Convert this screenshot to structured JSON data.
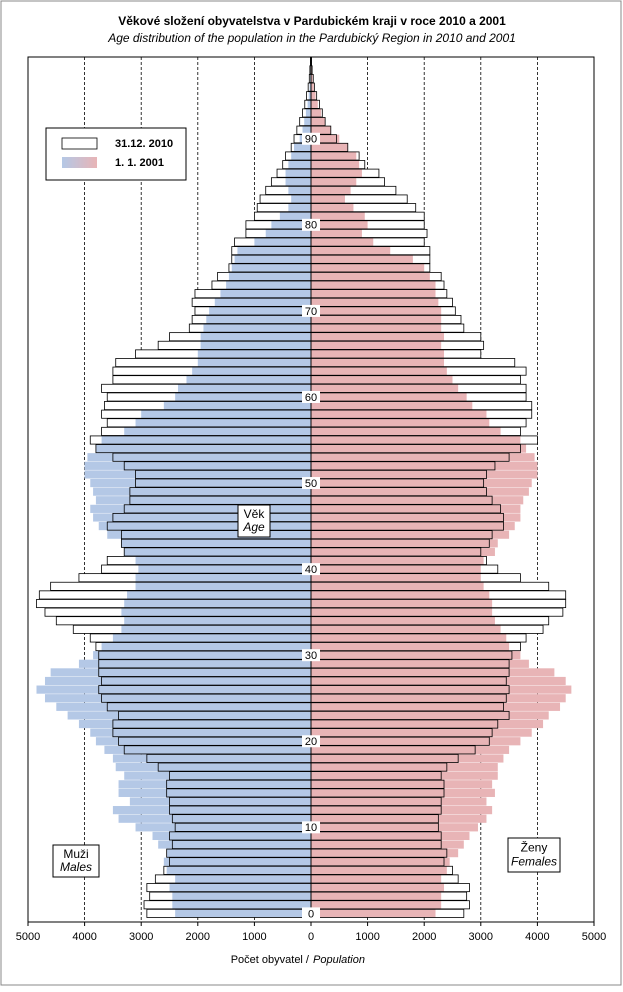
{
  "chart_data": {
    "type": "pyramid",
    "title": "Věkové složení obyvatelstva  v Pardubickém kraji v roce 2010 a 2001",
    "subtitle": "Age distribution of the population  in the Pardubický Region in 2010 and 2001",
    "x_label": "Počet obyvatel /",
    "x_label_en": "Population",
    "y_label": "Věk",
    "y_label_en": "Age",
    "left_label": "Muži",
    "left_label_en": "Males",
    "right_label": "Ženy",
    "right_label_en": "Females",
    "xlim": [
      -5000,
      5000
    ],
    "xticks": [
      {
        "value": -5000,
        "label": "5000"
      },
      {
        "value": -4000,
        "label": "4000"
      },
      {
        "value": -3000,
        "label": "3000"
      },
      {
        "value": -2000,
        "label": "2000"
      },
      {
        "value": -1000,
        "label": "1000"
      },
      0,
      1000,
      2000,
      3000,
      4000,
      5000
    ],
    "ylim": [
      -1,
      99.5
    ],
    "yticks": [
      0,
      10,
      20,
      30,
      40,
      50,
      60,
      70,
      80,
      90
    ],
    "grid": true,
    "legend": "top-left",
    "ages": [
      0,
      1,
      2,
      3,
      4,
      5,
      6,
      7,
      8,
      9,
      10,
      11,
      12,
      13,
      14,
      15,
      16,
      17,
      18,
      19,
      20,
      21,
      22,
      23,
      24,
      25,
      26,
      27,
      28,
      29,
      30,
      31,
      32,
      33,
      34,
      35,
      36,
      37,
      38,
      39,
      40,
      41,
      42,
      43,
      44,
      45,
      46,
      47,
      48,
      49,
      50,
      51,
      52,
      53,
      54,
      55,
      56,
      57,
      58,
      59,
      60,
      61,
      62,
      63,
      64,
      65,
      66,
      67,
      68,
      69,
      70,
      71,
      72,
      73,
      74,
      75,
      76,
      77,
      78,
      79,
      80,
      81,
      82,
      83,
      84,
      85,
      86,
      87,
      88,
      89,
      90,
      91,
      92,
      93,
      94,
      95,
      96,
      97,
      98,
      99
    ],
    "series": [
      {
        "name": "31.12. 2010",
        "color": "#ffffff",
        "stroke": "#000000",
        "males": [
          2900,
          2950,
          2850,
          2900,
          2750,
          2600,
          2500,
          2550,
          2450,
          2500,
          2400,
          2450,
          2500,
          2500,
          2550,
          2550,
          2500,
          2700,
          2900,
          3300,
          3400,
          3500,
          3500,
          3400,
          3600,
          3700,
          3750,
          3700,
          3750,
          3750,
          3750,
          3800,
          3900,
          4200,
          4500,
          4700,
          4850,
          4800,
          4600,
          4100,
          3700,
          3600,
          3300,
          3350,
          3350,
          3600,
          3500,
          3300,
          3200,
          3200,
          3100,
          3100,
          3300,
          3500,
          3800,
          3900,
          3700,
          3600,
          3700,
          3650,
          3600,
          3700,
          3500,
          3500,
          3450,
          3100,
          2700,
          2500,
          2150,
          2100,
          2050,
          2100,
          2050,
          1750,
          1650,
          1450,
          1400,
          1400,
          1350,
          1150,
          1150,
          1000,
          950,
          900,
          800,
          700,
          600,
          500,
          450,
          350,
          300,
          250,
          200,
          150,
          110,
          80,
          50,
          30,
          20,
          10
        ],
        "females": [
          2700,
          2800,
          2750,
          2800,
          2600,
          2500,
          2350,
          2400,
          2300,
          2300,
          2250,
          2250,
          2300,
          2300,
          2350,
          2350,
          2300,
          2400,
          2600,
          2900,
          3150,
          3200,
          3300,
          3500,
          3400,
          3450,
          3500,
          3450,
          3500,
          3500,
          3550,
          3700,
          3800,
          4100,
          4200,
          4450,
          4500,
          4500,
          4200,
          3700,
          3300,
          3100,
          3000,
          3150,
          3200,
          3400,
          3400,
          3350,
          3200,
          3100,
          3050,
          3100,
          3250,
          3500,
          3700,
          4000,
          3700,
          3800,
          3900,
          3900,
          3800,
          3800,
          3700,
          3800,
          3600,
          3000,
          3050,
          3000,
          2700,
          2650,
          2550,
          2500,
          2400,
          2350,
          2300,
          2100,
          2100,
          2100,
          2000,
          2050,
          2000,
          2000,
          1850,
          1700,
          1500,
          1300,
          1200,
          950,
          850,
          650,
          450,
          350,
          250,
          200,
          150,
          100,
          60,
          40,
          20,
          10
        ]
      },
      {
        "name": "1. 1. 2001",
        "color": "#b4c8e6",
        "color_females": "#e8b4b6",
        "males": [
          2400,
          2450,
          2450,
          2500,
          2400,
          2550,
          2600,
          2550,
          2700,
          2800,
          3100,
          3400,
          3500,
          3200,
          3400,
          3400,
          3300,
          3450,
          3500,
          3650,
          3800,
          3900,
          4100,
          4300,
          4500,
          4700,
          4850,
          4700,
          4600,
          4100,
          3850,
          3700,
          3500,
          3350,
          3300,
          3350,
          3300,
          3250,
          3100,
          3100,
          3050,
          3100,
          3300,
          3350,
          3600,
          3750,
          3850,
          3900,
          3800,
          3850,
          3900,
          4000,
          4000,
          3950,
          3800,
          3700,
          3300,
          3100,
          3000,
          2600,
          2400,
          2350,
          2200,
          2100,
          2000,
          2000,
          1950,
          1950,
          1900,
          1850,
          1800,
          1700,
          1600,
          1500,
          1450,
          1400,
          1350,
          1300,
          1000,
          800,
          700,
          550,
          400,
          350,
          400,
          450,
          450,
          400,
          350,
          300,
          200,
          150,
          120,
          90,
          60,
          40,
          25,
          15,
          10,
          5
        ],
        "females": [
          2200,
          2300,
          2300,
          2350,
          2300,
          2400,
          2450,
          2600,
          2700,
          2800,
          2950,
          3100,
          3200,
          3100,
          3250,
          3200,
          3300,
          3300,
          3400,
          3500,
          3700,
          3900,
          4100,
          4200,
          4400,
          4500,
          4600,
          4500,
          4300,
          3850,
          3700,
          3500,
          3450,
          3350,
          3250,
          3200,
          3200,
          3150,
          3050,
          3000,
          3000,
          3050,
          3250,
          3300,
          3500,
          3600,
          3700,
          3700,
          3750,
          3850,
          3900,
          4000,
          4000,
          3950,
          3800,
          3700,
          3350,
          3150,
          3100,
          2850,
          2750,
          2600,
          2500,
          2400,
          2350,
          2350,
          2300,
          2350,
          2300,
          2300,
          2300,
          2250,
          2200,
          2200,
          2100,
          2000,
          1800,
          1400,
          1100,
          900,
          1000,
          950,
          750,
          600,
          700,
          800,
          900,
          850,
          800,
          650,
          500,
          350,
          250,
          180,
          120,
          80,
          50,
          30,
          15,
          8
        ]
      }
    ]
  }
}
